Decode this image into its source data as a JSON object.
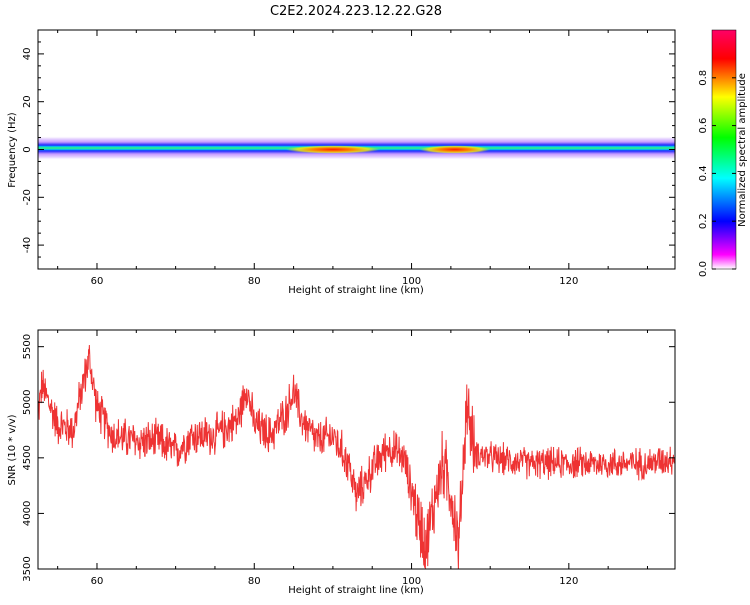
{
  "title": "C2E2.2024.223.12.22.G28",
  "chart_data": [
    {
      "type": "heatmap",
      "xlabel": "Height of straight line (km)",
      "ylabel": "Frequency (Hz)",
      "xlim": [
        52.5,
        133.5
      ],
      "ylim": [
        -50,
        50
      ],
      "x_ticks": [
        "60",
        "80",
        "100",
        "120"
      ],
      "y_ticks": [
        "40",
        "20",
        "0",
        "-20",
        "-40"
      ],
      "colorbar": {
        "label": "Normalized spectral amplitude",
        "range": [
          0,
          1
        ],
        "ticks": [
          "0.0",
          "0.2",
          "0.4",
          "0.6",
          "0.8"
        ],
        "colors": [
          "#ffffff",
          "#ff00ff",
          "#0000ff",
          "#00ffff",
          "#00ff00",
          "#ffff00",
          "#ff0000"
        ]
      },
      "band": {
        "center_hz": 0,
        "halfwidth_hz": 4,
        "peak_regions_km": [
          [
            84,
            96
          ],
          [
            101,
            110
          ]
        ]
      }
    },
    {
      "type": "line",
      "xlabel": "Height of straight line (km)",
      "ylabel": "SNR (10 * v/v)",
      "xlim": [
        52.5,
        133.5
      ],
      "ylim": [
        3500,
        5650
      ],
      "x_ticks": [
        "60",
        "80",
        "100",
        "120"
      ],
      "y_ticks": [
        "5500",
        "5000",
        "4500",
        "4000",
        "3500"
      ],
      "color": "#ee3333",
      "series_anchor_points": {
        "x": [
          52.5,
          53,
          55,
          57,
          58,
          59,
          60,
          62,
          65,
          68,
          70,
          72,
          75,
          78,
          79,
          80,
          82,
          84,
          85,
          86,
          88,
          90,
          92,
          93,
          95,
          97,
          99,
          100,
          101,
          102,
          103,
          104,
          105,
          106,
          107,
          108,
          110,
          115,
          120,
          125,
          130,
          133.5
        ],
        "y": [
          4900,
          5150,
          4800,
          4750,
          5100,
          5400,
          4950,
          4700,
          4650,
          4650,
          4550,
          4700,
          4700,
          4850,
          5150,
          4800,
          4700,
          4900,
          5100,
          4850,
          4650,
          4700,
          4450,
          4150,
          4400,
          4600,
          4500,
          4200,
          3900,
          3750,
          4150,
          4450,
          4200,
          3700,
          5000,
          4550,
          4500,
          4450,
          4450,
          4450,
          4450,
          4500
        ]
      }
    }
  ]
}
